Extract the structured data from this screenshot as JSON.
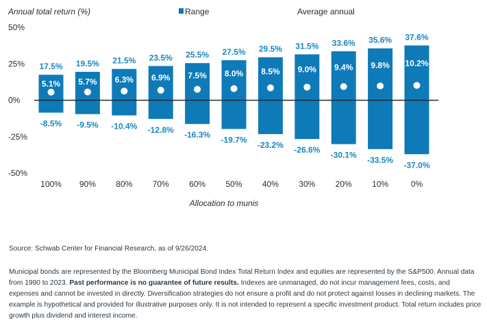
{
  "chart_data": {
    "type": "bar",
    "ylabel": "Annual total return (%)",
    "xlabel": "Allocation to munis",
    "legend": {
      "range": "Range",
      "average": "Average annual",
      "placement": "top"
    },
    "colors": {
      "bar": "#0f7ab8",
      "label": "#1b86bf",
      "zero_line": "#1f2a33"
    },
    "ylim": [
      -50,
      50
    ],
    "yticks": [
      "50%",
      "25%",
      "0%",
      "-25%",
      "-50%"
    ],
    "ytick_values": [
      50,
      25,
      0,
      -25,
      -50
    ],
    "categories": [
      "100%",
      "90%",
      "80%",
      "70%",
      "60%",
      "50%",
      "40%",
      "30%",
      "20%",
      "10%",
      "0%"
    ],
    "series": [
      {
        "name": "Range",
        "max": [
          17.5,
          19.5,
          21.5,
          23.5,
          25.5,
          27.5,
          29.5,
          31.5,
          33.6,
          35.6,
          37.6
        ],
        "min": [
          -8.5,
          -9.5,
          -10.4,
          -12.8,
          -16.3,
          -19.7,
          -23.2,
          -26.6,
          -30.1,
          -33.5,
          -37.0
        ]
      },
      {
        "name": "Average annual",
        "values": [
          5.1,
          5.7,
          6.3,
          6.9,
          7.5,
          8.0,
          8.5,
          9.0,
          9.4,
          9.8,
          10.2
        ]
      }
    ],
    "max_labels": [
      "17.5%",
      "19.5%",
      "21.5%",
      "23.5%",
      "25.5%",
      "27.5%",
      "29.5%",
      "31.5%",
      "33.6%",
      "35.6%",
      "37.6%"
    ],
    "min_labels": [
      "-8.5%",
      "-9.5%",
      "-10.4%",
      "-12.8%",
      "-16.3%",
      "-19.7%",
      "-23.2%",
      "-26.6%",
      "-30.1%",
      "-33.5%",
      "-37.0%"
    ],
    "avg_labels": [
      "5.1%",
      "5.7%",
      "6.3%",
      "6.9%",
      "7.5%",
      "8.0%",
      "8.5%",
      "9.0%",
      "9.4%",
      "9.8%",
      "10.2%"
    ],
    "grid": false
  },
  "notes": {
    "source": "Source: Schwab Center for Financial Research, as of 9/26/2024.",
    "body_part1": "Municipal bonds are represented by the Bloomberg Municipal Bond Index Total Return Index and equities are represented by the S&P500. Annual data from 1990 to 2023. ",
    "body_bold": "Past performance is no guarantee of future results.",
    "body_part2": " Indexes are unmanaged, do not incur management fees, costs, and expenses and cannot be invested in directly. Diversification strategies do not ensure a profit and do not protect against losses in declining markets. The example is hypothetical and provided for illustrative purposes only. It is not intended to represent a specific investment product.  Total return includes price growth plus dividend and interest income."
  }
}
